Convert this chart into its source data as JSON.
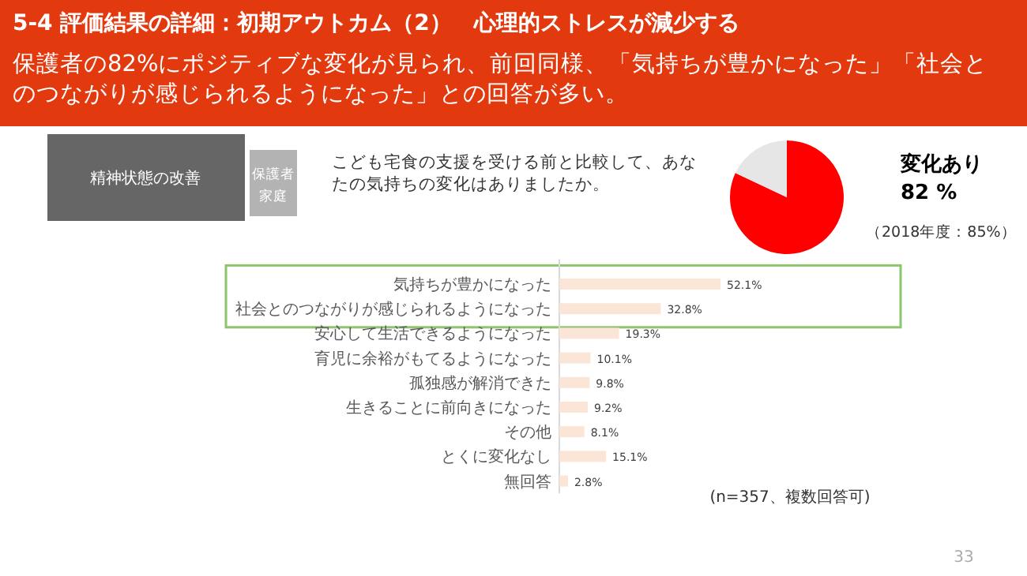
{
  "chart_data": [
    {
      "type": "pie",
      "title": "5-4 評価結果の詳細：初期アウトカム（2）　心理的ストレスが減少する",
      "subtitle": "保護者の82%にポジティブな変化が見られ、前回同様、「気持ちが豊かになった」「社会とのつながりが感じられるようになった」との回答が多い。",
      "categories": [
        "変化あり",
        null
      ],
      "values": [
        82,
        18
      ],
      "colors": [
        "#ff0000",
        "#e6e6e6"
      ],
      "value_labels": [
        "82 %",
        null
      ],
      "annotations": [
        "精神状態の改善",
        "保護者家庭",
        "こども宅食の支援を受ける前と比較して、あなたの気持ちの変化はありましたか。",
        "（2018年度：85%）",
        "33"
      ]
    },
    {
      "type": "bar",
      "orientation": "horizontal",
      "color": "#fbe5d6",
      "categories": [
        "気持ちが豊かになった",
        "社会とのつながりが感じられるようになった",
        "安心して生活できるようになった",
        "育児に余裕がもてるようになった",
        "孤独感が解消できた",
        "生きることに前向きになった",
        "その他",
        "とくに変化なし",
        "無回答"
      ],
      "values": [
        52.1,
        32.8,
        19.3,
        10.1,
        9.8,
        9.2,
        8.1,
        15.1,
        2.8
      ],
      "value_labels": [
        "52.1%",
        "32.8%",
        "19.3%",
        "10.1%",
        "9.8%",
        "9.2%",
        "8.1%",
        "15.1%",
        "2.8%"
      ],
      "annotations": [
        "(n=357、複数回答可)"
      ]
    }
  ]
}
